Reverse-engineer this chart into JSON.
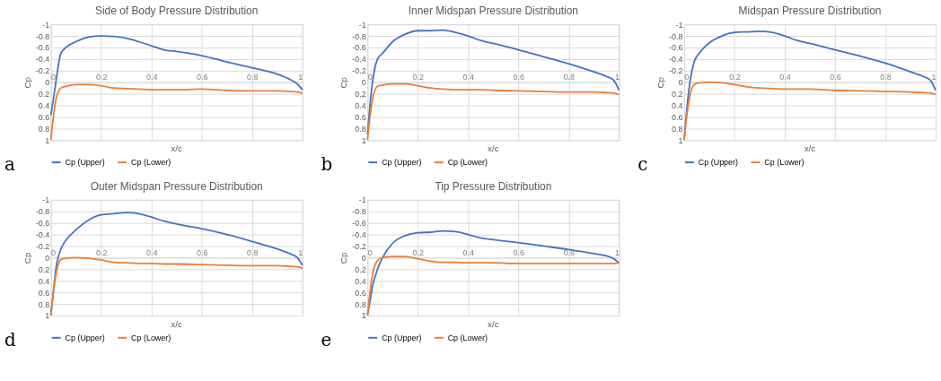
{
  "chart_data": [
    {
      "type": "line",
      "title": "Side of Body Pressure Distribution",
      "xlabel": "x/c",
      "ylabel": "Cp",
      "annotations": [
        "a"
      ],
      "legend": "bottom",
      "grid": true,
      "x": [
        0,
        0.01,
        0.02,
        0.04,
        0.06,
        0.1,
        0.15,
        0.2,
        0.25,
        0.3,
        0.35,
        0.4,
        0.45,
        0.5,
        0.6,
        0.7,
        0.8,
        0.9,
        0.95,
        0.98,
        1
      ],
      "xlim": [
        0,
        1
      ],
      "xticks": [
        0,
        0.2,
        0.4,
        0.6,
        0.8,
        1
      ],
      "ylim": [
        1,
        -1
      ],
      "yticks": [
        -1,
        -0.8,
        -0.6,
        -0.4,
        -0.2,
        0,
        0.2,
        0.4,
        0.6,
        0.8,
        1
      ],
      "series": [
        {
          "name": "Cp (Upper)",
          "color": "#4472c4",
          "values": [
            0.57,
            0.3,
            0.0,
            -0.5,
            -0.6,
            -0.7,
            -0.78,
            -0.8,
            -0.79,
            -0.76,
            -0.7,
            -0.63,
            -0.56,
            -0.53,
            -0.46,
            -0.35,
            -0.25,
            -0.14,
            -0.05,
            0.03,
            0.13
          ]
        },
        {
          "name": "Cp (Lower)",
          "color": "#ed7d31",
          "values": [
            1.0,
            0.6,
            0.3,
            0.1,
            0.07,
            0.04,
            0.04,
            0.06,
            0.1,
            0.11,
            0.12,
            0.13,
            0.13,
            0.13,
            0.12,
            0.14,
            0.15,
            0.15,
            0.16,
            0.17,
            0.19
          ]
        }
      ]
    },
    {
      "type": "line",
      "title": "Inner Midspan Pressure Distribution",
      "xlabel": "x/c",
      "ylabel": "Cp",
      "annotations": [
        "b"
      ],
      "legend": "bottom",
      "grid": true,
      "x": [
        0,
        0.01,
        0.02,
        0.04,
        0.06,
        0.1,
        0.15,
        0.2,
        0.25,
        0.3,
        0.35,
        0.4,
        0.45,
        0.5,
        0.6,
        0.7,
        0.8,
        0.9,
        0.95,
        0.98,
        1
      ],
      "xlim": [
        0,
        1
      ],
      "xticks": [
        0,
        0.2,
        0.4,
        0.6,
        0.8,
        1
      ],
      "ylim": [
        1,
        -1
      ],
      "yticks": [
        -1,
        -0.8,
        -0.6,
        -0.4,
        -0.2,
        0,
        0.2,
        0.4,
        0.6,
        0.8,
        1
      ],
      "series": [
        {
          "name": "Cp (Upper)",
          "color": "#4472c4",
          "values": [
            0.9,
            0.4,
            0.0,
            -0.4,
            -0.5,
            -0.7,
            -0.83,
            -0.89,
            -0.89,
            -0.9,
            -0.86,
            -0.8,
            -0.72,
            -0.67,
            -0.56,
            -0.44,
            -0.32,
            -0.18,
            -0.1,
            -0.03,
            0.14
          ]
        },
        {
          "name": "Cp (Lower)",
          "color": "#ed7d31",
          "values": [
            1.0,
            0.6,
            0.3,
            0.07,
            0.05,
            0.03,
            0.03,
            0.06,
            0.1,
            0.12,
            0.13,
            0.13,
            0.13,
            0.14,
            0.15,
            0.16,
            0.17,
            0.17,
            0.18,
            0.19,
            0.21
          ]
        }
      ]
    },
    {
      "type": "line",
      "title": "Midspan Pressure Distribution",
      "xlabel": "x/c",
      "ylabel": "Cp",
      "annotations": [
        "c"
      ],
      "legend": "bottom",
      "grid": true,
      "x": [
        0,
        0.01,
        0.02,
        0.04,
        0.06,
        0.1,
        0.15,
        0.2,
        0.25,
        0.3,
        0.35,
        0.4,
        0.45,
        0.5,
        0.6,
        0.7,
        0.8,
        0.9,
        0.95,
        0.98,
        1
      ],
      "xlim": [
        0,
        1
      ],
      "xticks": [
        0,
        0.2,
        0.4,
        0.6,
        0.8,
        1
      ],
      "ylim": [
        1,
        -1
      ],
      "yticks": [
        -1,
        -0.8,
        -0.6,
        -0.4,
        -0.2,
        0,
        0.2,
        0.4,
        0.6,
        0.8,
        1
      ],
      "series": [
        {
          "name": "Cp (Upper)",
          "color": "#4472c4",
          "values": [
            1.0,
            0.5,
            0.1,
            -0.35,
            -0.5,
            -0.68,
            -0.8,
            -0.86,
            -0.87,
            -0.88,
            -0.86,
            -0.8,
            -0.72,
            -0.67,
            -0.56,
            -0.45,
            -0.33,
            -0.18,
            -0.1,
            -0.03,
            0.14
          ]
        },
        {
          "name": "Cp (Lower)",
          "color": "#ed7d31",
          "values": [
            1.0,
            0.6,
            0.3,
            0.04,
            0.01,
            0.0,
            0.01,
            0.04,
            0.08,
            0.1,
            0.11,
            0.12,
            0.12,
            0.12,
            0.14,
            0.15,
            0.16,
            0.17,
            0.18,
            0.19,
            0.21
          ]
        }
      ]
    },
    {
      "type": "line",
      "title": "Outer Midspan Pressure Distribution",
      "xlabel": "x/c",
      "ylabel": "Cp",
      "annotations": [
        "d"
      ],
      "legend": "bottom",
      "grid": true,
      "x": [
        0,
        0.01,
        0.02,
        0.04,
        0.06,
        0.1,
        0.15,
        0.2,
        0.25,
        0.3,
        0.35,
        0.4,
        0.45,
        0.5,
        0.6,
        0.7,
        0.8,
        0.9,
        0.95,
        0.98,
        1
      ],
      "xlim": [
        0,
        1
      ],
      "xticks": [
        0,
        0.2,
        0.4,
        0.6,
        0.8,
        1
      ],
      "ylim": [
        1,
        -1
      ],
      "yticks": [
        -1,
        -0.8,
        -0.6,
        -0.4,
        -0.2,
        0,
        0.2,
        0.4,
        0.6,
        0.8,
        1
      ],
      "series": [
        {
          "name": "Cp (Upper)",
          "color": "#4472c4",
          "values": [
            1.0,
            0.6,
            0.2,
            -0.15,
            -0.3,
            -0.48,
            -0.65,
            -0.74,
            -0.76,
            -0.78,
            -0.76,
            -0.7,
            -0.63,
            -0.58,
            -0.5,
            -0.4,
            -0.28,
            -0.15,
            -0.07,
            0.0,
            0.13
          ]
        },
        {
          "name": "Cp (Lower)",
          "color": "#ed7d31",
          "values": [
            1.0,
            0.6,
            0.3,
            0.03,
            0.01,
            0.0,
            0.01,
            0.04,
            0.08,
            0.09,
            0.1,
            0.1,
            0.11,
            0.11,
            0.12,
            0.13,
            0.14,
            0.14,
            0.15,
            0.16,
            0.18
          ]
        }
      ]
    },
    {
      "type": "line",
      "title": "Tip Pressure Distribution",
      "xlabel": "x/c",
      "ylabel": "Cp",
      "annotations": [
        "e"
      ],
      "legend": "bottom",
      "grid": true,
      "x": [
        0,
        0.01,
        0.02,
        0.04,
        0.06,
        0.1,
        0.15,
        0.2,
        0.25,
        0.3,
        0.35,
        0.4,
        0.45,
        0.5,
        0.6,
        0.7,
        0.8,
        0.9,
        0.95,
        0.98,
        1
      ],
      "xlim": [
        0,
        1
      ],
      "xticks": [
        0,
        0.2,
        0.4,
        0.6,
        0.8,
        1
      ],
      "ylim": [
        1,
        -1
      ],
      "yticks": [
        -1,
        -0.8,
        -0.6,
        -0.4,
        -0.2,
        0,
        0.2,
        0.4,
        0.6,
        0.8,
        1
      ],
      "series": [
        {
          "name": "Cp (Upper)",
          "color": "#4472c4",
          "values": [
            1.0,
            0.75,
            0.5,
            0.2,
            0.0,
            -0.25,
            -0.38,
            -0.43,
            -0.44,
            -0.46,
            -0.45,
            -0.4,
            -0.34,
            -0.31,
            -0.26,
            -0.2,
            -0.14,
            -0.07,
            -0.03,
            0.02,
            0.09
          ]
        },
        {
          "name": "Cp (Lower)",
          "color": "#ed7d31",
          "values": [
            1.0,
            0.6,
            0.3,
            0.05,
            0.0,
            -0.02,
            -0.02,
            0.02,
            0.06,
            0.08,
            0.08,
            0.09,
            0.09,
            0.09,
            0.1,
            0.1,
            0.1,
            0.1,
            0.1,
            0.1,
            0.09
          ]
        }
      ]
    }
  ]
}
